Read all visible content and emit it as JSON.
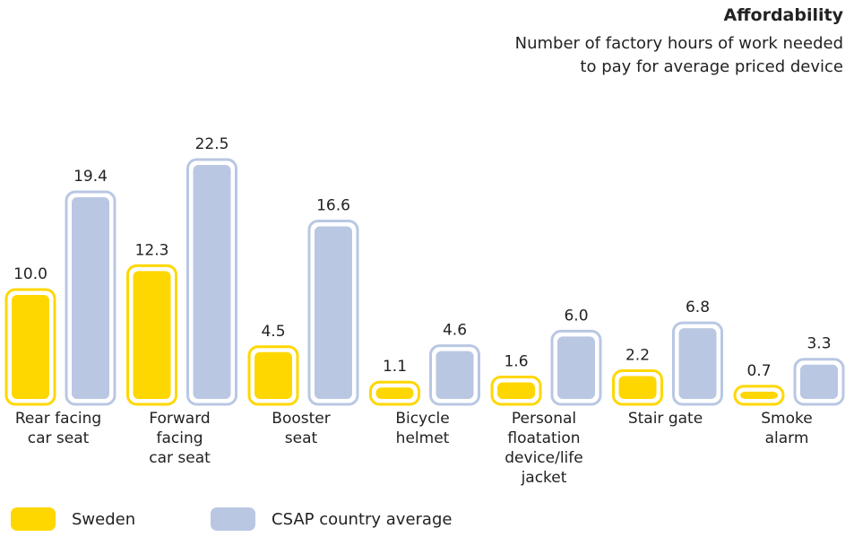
{
  "chart_data": {
    "type": "bar",
    "title": "Affordability",
    "subtitle": "Number of factory hours of work needed\nto pay for average priced device",
    "categories": [
      "Rear facing\ncar seat",
      "Forward\nfacing\ncar seat",
      "Booster\nseat",
      "Bicycle\nhelmet",
      "Personal\nfloatation\ndevice/life\njacket",
      "Stair gate",
      "Smoke\nalarm"
    ],
    "series": [
      {
        "name": "Sweden",
        "color": "#ffd700",
        "values": [
          10.0,
          12.3,
          4.5,
          1.1,
          1.6,
          2.2,
          0.7
        ],
        "value_labels": [
          "10.0",
          "12.3",
          "4.5",
          "1.1",
          "1.6",
          "2.2",
          "0.7"
        ]
      },
      {
        "name": "CSAP country average",
        "color": "#b9c7e3",
        "values": [
          19.4,
          22.5,
          16.6,
          4.6,
          6.0,
          6.8,
          3.3
        ],
        "value_labels": [
          "19.4",
          "22.5",
          "16.6",
          "4.6",
          "6.0",
          "6.8",
          "3.3"
        ]
      }
    ]
  }
}
